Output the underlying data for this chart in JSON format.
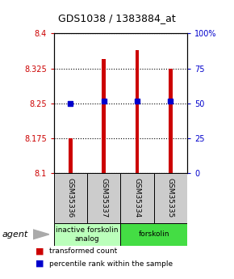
{
  "title": "GDS1038 / 1383884_at",
  "samples": [
    "GSM35336",
    "GSM35337",
    "GSM35334",
    "GSM35335"
  ],
  "bar_values": [
    8.175,
    8.345,
    8.365,
    8.325
  ],
  "percentile_values": [
    8.25,
    8.255,
    8.255,
    8.255
  ],
  "y_min": 8.1,
  "y_max": 8.4,
  "y_ticks": [
    8.1,
    8.175,
    8.25,
    8.325,
    8.4
  ],
  "y_tick_labels": [
    "8.1",
    "8.175",
    "8.25",
    "8.325",
    "8.4"
  ],
  "right_y_ticks": [
    0.0,
    0.25,
    0.5,
    0.75,
    1.0
  ],
  "right_y_tick_labels": [
    "0",
    "25",
    "50",
    "75",
    "100%"
  ],
  "bar_color": "#cc0000",
  "percentile_color": "#0000cc",
  "bar_width": 0.12,
  "groups": [
    {
      "label": "inactive forskolin\nanalog",
      "samples": [
        0,
        1
      ],
      "color": "#bbffbb"
    },
    {
      "label": "forskolin",
      "samples": [
        2,
        3
      ],
      "color": "#44dd44"
    }
  ],
  "agent_label": "agent",
  "legend": [
    {
      "color": "#cc0000",
      "label": "transformed count"
    },
    {
      "color": "#0000cc",
      "label": "percentile rank within the sample"
    }
  ],
  "grid_color": "black",
  "grid_style": "dotted",
  "title_color": "black",
  "left_tick_color": "#cc0000",
  "right_tick_color": "#0000cc",
  "sample_box_color": "#cccccc",
  "sample_text_color": "black",
  "fig_width": 2.9,
  "fig_height": 3.45,
  "dpi": 100
}
